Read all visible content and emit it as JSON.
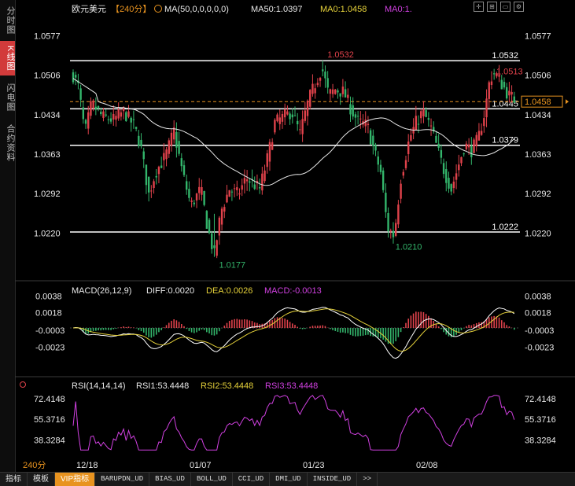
{
  "sidebar": {
    "tabs": [
      {
        "label": "分时图",
        "active": false
      },
      {
        "label": "K线图",
        "active": true
      },
      {
        "label": "闪电图",
        "active": false
      },
      {
        "label": "合约资料",
        "active": false
      }
    ]
  },
  "header": {
    "symbol": "欧元美元",
    "period": "【240分】",
    "ma_label": "MA(50,0,0,0,0,0)",
    "ma50_label": "MA50:1.0397",
    "ma0a_label": "MA0:1.0458",
    "ma0b_label": "MA0:1."
  },
  "macd_header": {
    "name": "MACD(26,12,9)",
    "diff": "DIFF:0.0020",
    "dea": "DEA:0.0026",
    "macd": "MACD:-0.0013"
  },
  "rsi_header": {
    "name": "RSI(14,14,14)",
    "rsi1": "RSI1:53.4448",
    "rsi2": "RSI2:53.4448",
    "rsi3": "RSI3:53.4448"
  },
  "period_indicator": "240分",
  "bottom_tabs": [
    "指标",
    "模板",
    "VIP指标",
    "BARUPDN_UD",
    "BIAS_UD",
    "BOLL_UD",
    "CCI_UD",
    "DMI_UD",
    "INSIDE_UD",
    ">>"
  ],
  "colors": {
    "up": "#e0424b",
    "down": "#33b56b",
    "ma50": "#e8e8e8",
    "dea": "#e6d23a",
    "diff": "#ffffff",
    "rsi": "#d040e0",
    "hline": "#ffffff",
    "current": "#e8931f",
    "high_label": "#e0424b",
    "low_label": "#33b56b"
  },
  "chart_data": [
    {
      "type": "candlestick",
      "title": "欧元美元 240分",
      "x_ticks": [
        "12/18",
        "01/07",
        "01/23",
        "02/08"
      ],
      "y_ticks": [
        "1.0577",
        "1.0506",
        "1.0434",
        "1.0363",
        "1.0292",
        "1.0220"
      ],
      "ylim": [
        1.0158,
        1.0602
      ],
      "ma50_last": 1.0397,
      "current_price": "1.0458",
      "annotations": {
        "high": "1.0532",
        "high2": "1.0513",
        "low": "1.0177",
        "low2": "1.0210"
      },
      "horizontal_lines": [
        {
          "value": 1.0532,
          "label": "1.0532"
        },
        {
          "value": 1.0445,
          "label": "1.0445"
        },
        {
          "value": 1.0379,
          "label": "1.0379"
        },
        {
          "value": 1.0222,
          "label": "1.0222"
        }
      ]
    },
    {
      "type": "bar+line",
      "title": "MACD(26,12,9)",
      "y_ticks": [
        "0.0038",
        "0.0018",
        "-0.0003",
        "-0.0023"
      ],
      "ylim": [
        -0.0042,
        0.0042
      ],
      "diff_last": 0.002,
      "dea_last": 0.0026,
      "macd_last": -0.0013
    },
    {
      "type": "line",
      "title": "RSI(14,14,14)",
      "y_ticks": [
        "72.4148",
        "55.3716",
        "38.3284"
      ],
      "ylim": [
        25,
        82
      ],
      "last": 53.4448
    }
  ]
}
